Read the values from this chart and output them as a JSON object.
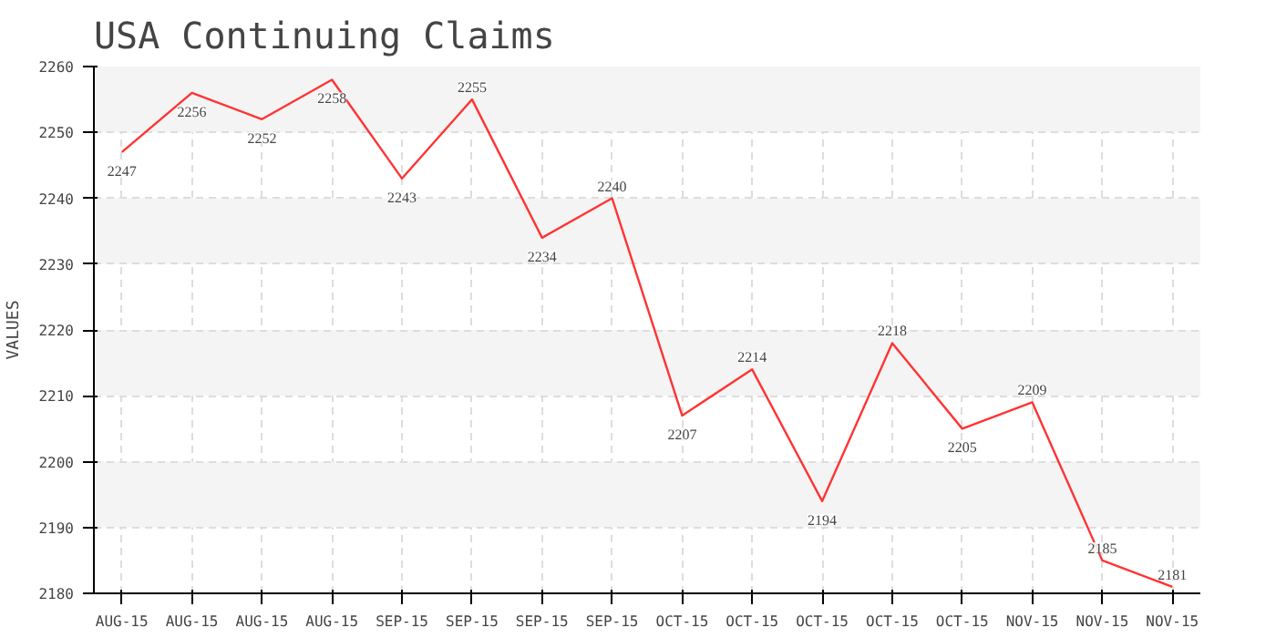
{
  "chart_data": {
    "type": "line",
    "title": "USA Continuing Claims",
    "ylabel": "VALUES",
    "categories": [
      "AUG-15",
      "AUG-15",
      "AUG-15",
      "AUG-15",
      "SEP-15",
      "SEP-15",
      "SEP-15",
      "SEP-15",
      "OCT-15",
      "OCT-15",
      "OCT-15",
      "OCT-15",
      "OCT-15",
      "NOV-15",
      "NOV-15",
      "NOV-15"
    ],
    "values": [
      2247,
      2256,
      2252,
      2258,
      2243,
      2255,
      2234,
      2240,
      2207,
      2214,
      2194,
      2218,
      2205,
      2209,
      2185,
      2181
    ],
    "color": "#ff3333",
    "ylim": [
      2180,
      2260
    ],
    "yticks": [
      2180,
      2190,
      2200,
      2210,
      2220,
      2230,
      2240,
      2250,
      2260
    ],
    "grid": true,
    "data_labels": true,
    "marker": "none",
    "line_style": "solid"
  }
}
